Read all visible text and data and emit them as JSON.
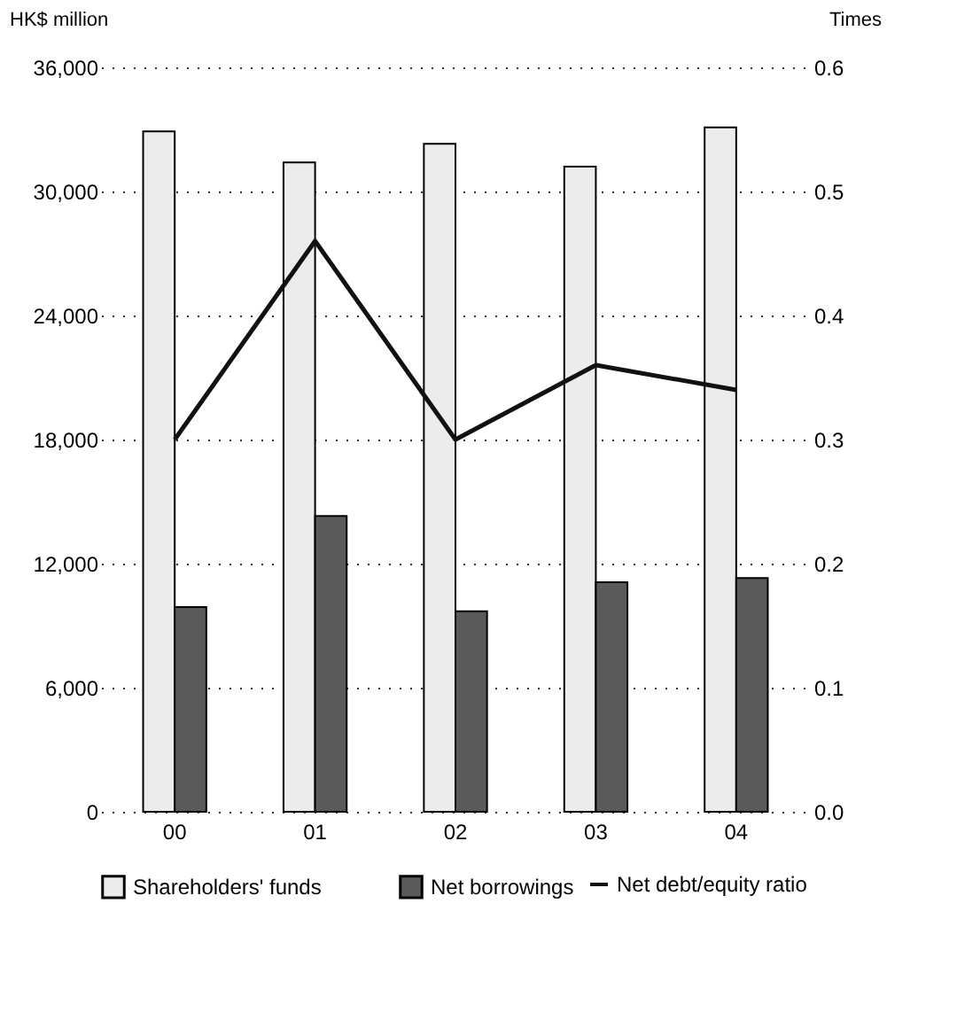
{
  "chart_data": {
    "type": "bar",
    "categories": [
      "00",
      "01",
      "02",
      "03",
      "04"
    ],
    "ylabel": "HK$ million",
    "y2label": "Times",
    "ylim": [
      0,
      36000
    ],
    "yticks": [
      0,
      {
        "value": 6000,
        "label": "6,000"
      },
      {
        "value": 12000,
        "label": "12,000"
      },
      {
        "value": 18000,
        "label": "18,000"
      },
      {
        "value": 24000,
        "label": "24,000"
      },
      {
        "value": 30000,
        "label": "30,000"
      },
      {
        "value": 36000,
        "label": "36,000"
      }
    ],
    "y2lim": [
      0,
      0.6
    ],
    "y2ticks": [
      {
        "value": 0,
        "label": "0.0"
      },
      0.1,
      0.2,
      0.3,
      0.4,
      0.5,
      0.6
    ],
    "grid": "y",
    "legend": "bottom",
    "series": [
      {
        "name": "Shareholders' funds",
        "type": "bar",
        "color": "#ececec",
        "values": [
          32900,
          31400,
          32300,
          31200,
          33100
        ]
      },
      {
        "name": "Net borrowings",
        "type": "bar",
        "color": "#5a5a5a",
        "values": [
          9900,
          14300,
          9700,
          11100,
          11300
        ]
      },
      {
        "name": "Net debt/equity ratio",
        "type": "line",
        "axis": "y2",
        "color": "#111111",
        "values": [
          0.3,
          0.46,
          0.3,
          0.36,
          0.34
        ]
      }
    ]
  }
}
